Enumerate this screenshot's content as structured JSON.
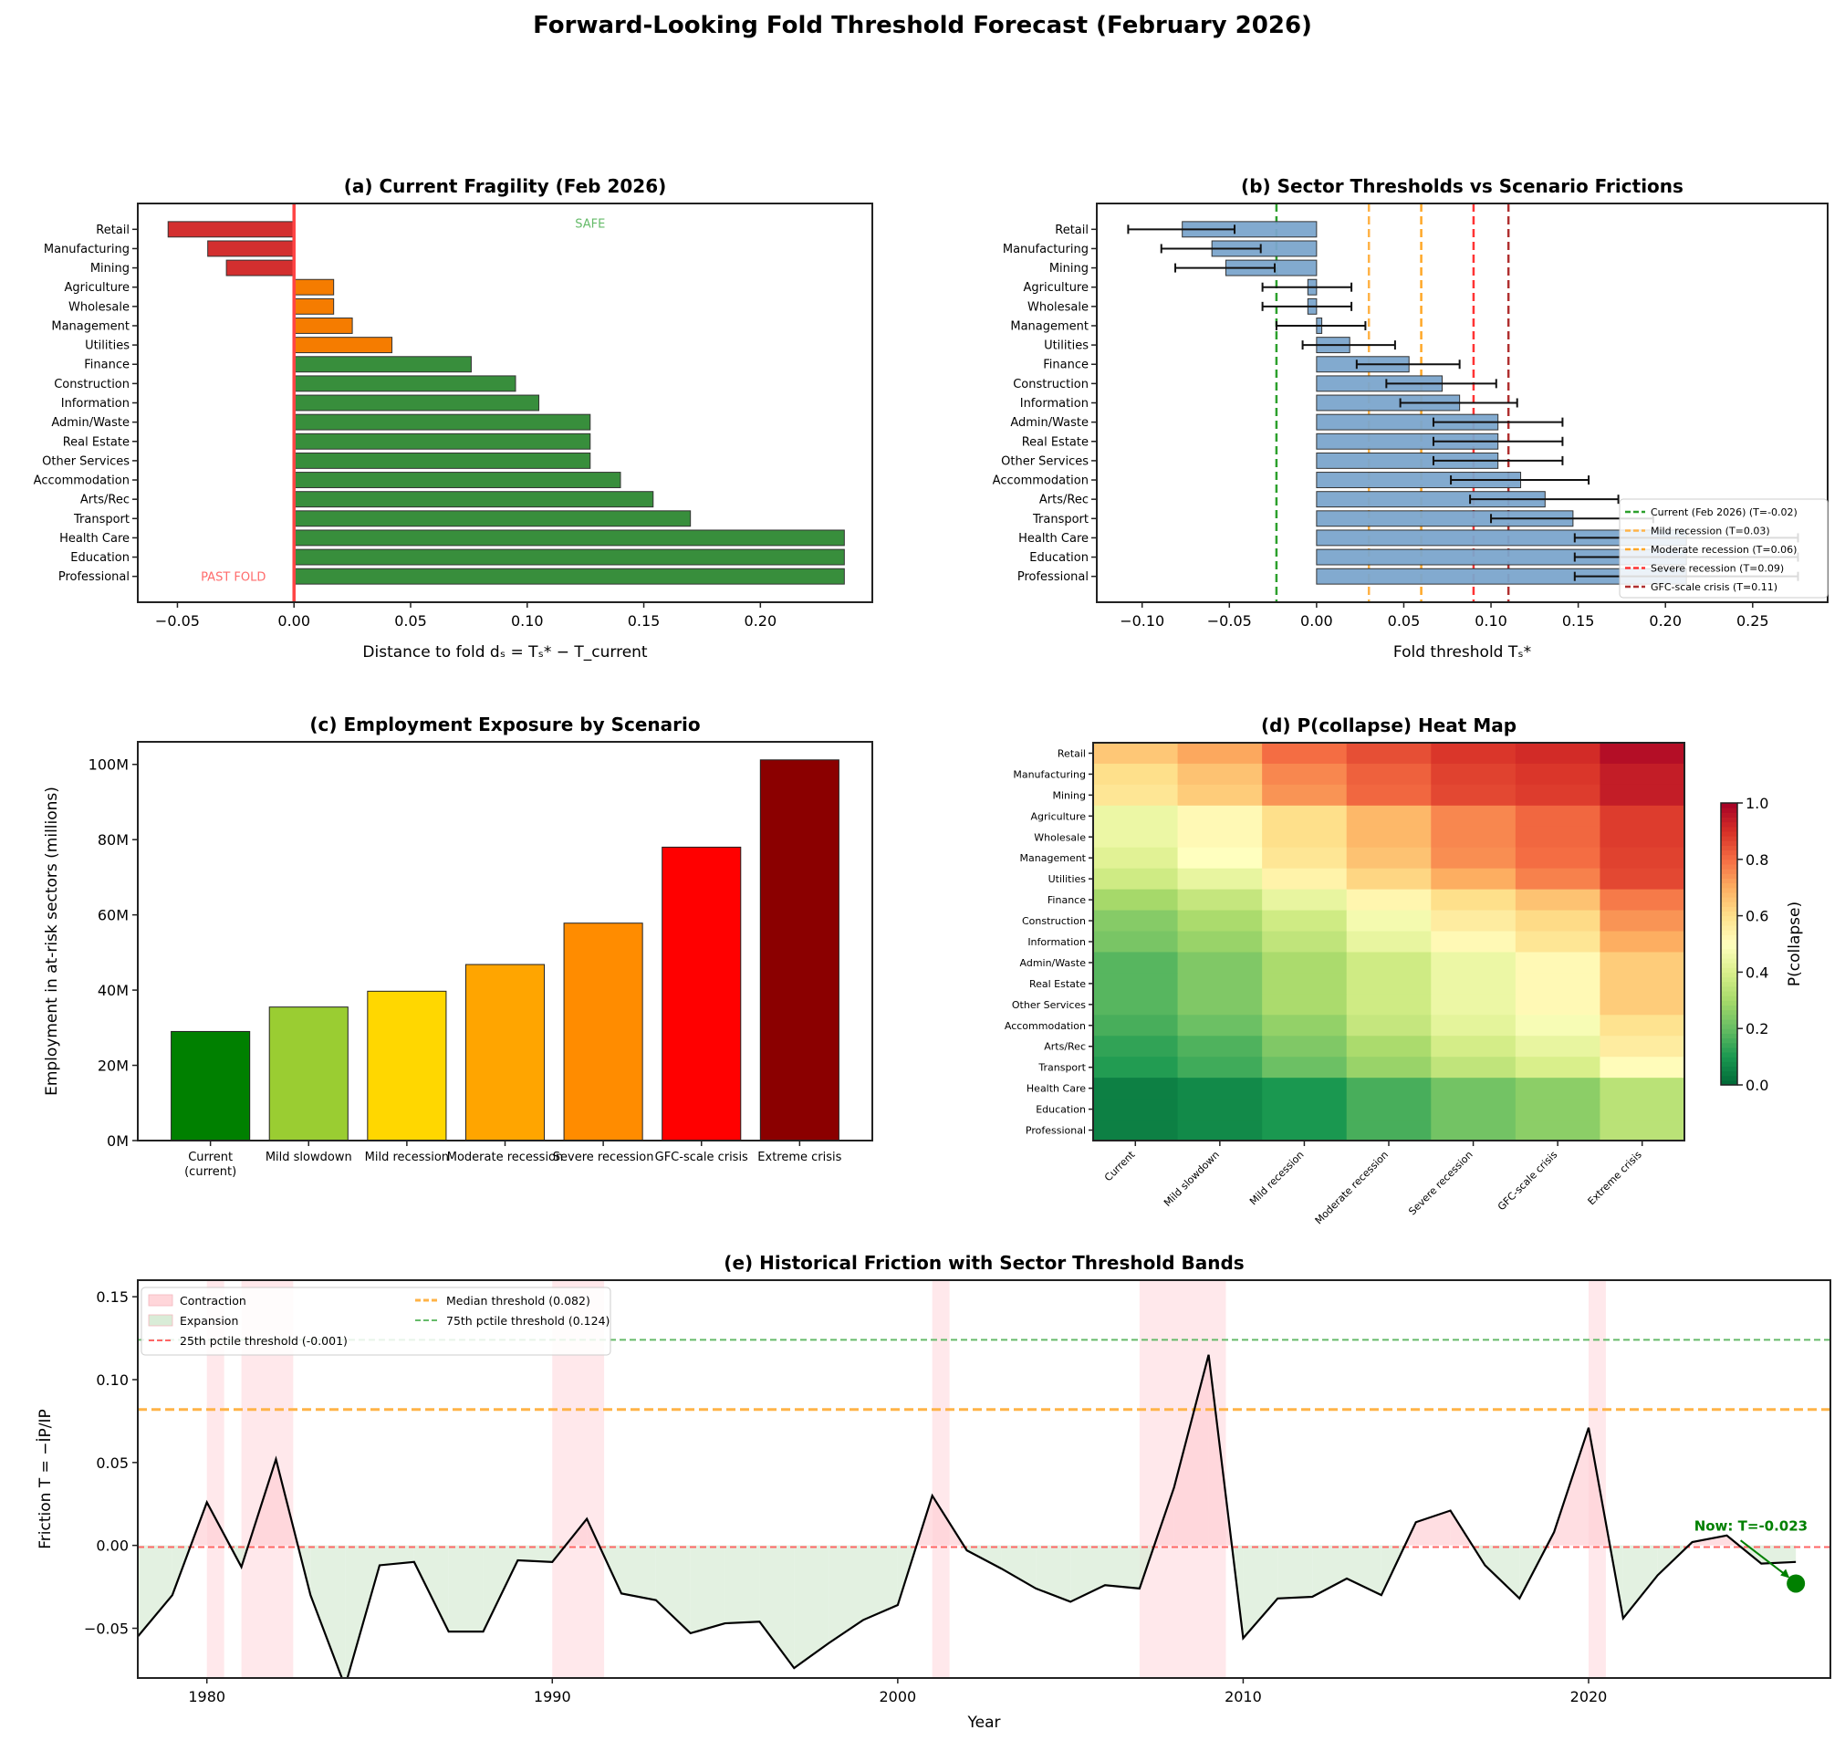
{
  "title": "Forward-Looking Fold Threshold Forecast (February 2026)",
  "colors": {
    "past_fold": "#d32f2f",
    "near_fold": "#f57c00",
    "safe": "#388e3c",
    "threshold_bar": "#7ba5cc",
    "current_line": "#ff4444"
  },
  "chart_data": [
    {
      "id": "a",
      "type": "bar",
      "orientation": "horizontal",
      "title": "(a) Current Fragility (Feb 2026)",
      "xlabel": "Distance to fold dₛ = Tₛ* − T_current",
      "xlim": [
        -0.067,
        0.248
      ],
      "xticks": [
        -0.05,
        0.0,
        0.05,
        0.1,
        0.15,
        0.2
      ],
      "categories": [
        "Retail",
        "Manufacturing",
        "Mining",
        "Agriculture",
        "Wholesale",
        "Management",
        "Utilities",
        "Finance",
        "Construction",
        "Information",
        "Admin/Waste",
        "Real Estate",
        "Other Services",
        "Accommodation",
        "Arts/Rec",
        "Transport",
        "Health Care",
        "Education",
        "Professional"
      ],
      "values": [
        -0.054,
        -0.037,
        -0.029,
        0.017,
        0.017,
        0.025,
        0.042,
        0.076,
        0.095,
        0.105,
        0.127,
        0.127,
        0.127,
        0.14,
        0.154,
        0.17,
        0.236,
        0.236,
        0.236
      ],
      "bar_colors": [
        "#d32f2f",
        "#d32f2f",
        "#d32f2f",
        "#f57c00",
        "#f57c00",
        "#f57c00",
        "#f57c00",
        "#388e3c",
        "#388e3c",
        "#388e3c",
        "#388e3c",
        "#388e3c",
        "#388e3c",
        "#388e3c",
        "#388e3c",
        "#388e3c",
        "#388e3c",
        "#388e3c",
        "#388e3c"
      ],
      "reference_line": 0.0,
      "annotations": [
        {
          "text": "SAFE",
          "x": 0.127,
          "y_category": "Retail",
          "color": "#66bb6a"
        },
        {
          "text": "PAST FOLD",
          "x": -0.026,
          "y_category": "Professional",
          "color": "#ff6b6b"
        }
      ]
    },
    {
      "id": "b",
      "type": "bar",
      "orientation": "horizontal",
      "title": "(b) Sector Thresholds vs Scenario Frictions",
      "xlabel": "Fold threshold Tₛ*",
      "xlim": [
        -0.126,
        0.293
      ],
      "xticks": [
        -0.1,
        -0.05,
        0.0,
        0.05,
        0.1,
        0.15,
        0.2,
        0.25
      ],
      "categories": [
        "Retail",
        "Manufacturing",
        "Mining",
        "Agriculture",
        "Wholesale",
        "Management",
        "Utilities",
        "Finance",
        "Construction",
        "Information",
        "Admin/Waste",
        "Real Estate",
        "Other Services",
        "Accommodation",
        "Arts/Rec",
        "Transport",
        "Health Care",
        "Education",
        "Professional"
      ],
      "values": [
        -0.077,
        -0.06,
        -0.052,
        -0.005,
        -0.005,
        0.003,
        0.019,
        0.053,
        0.072,
        0.082,
        0.104,
        0.104,
        0.104,
        0.117,
        0.131,
        0.147,
        0.212,
        0.212,
        0.212
      ],
      "error_low": [
        -0.108,
        -0.089,
        -0.081,
        -0.031,
        -0.031,
        -0.023,
        -0.008,
        0.023,
        0.04,
        0.048,
        0.067,
        0.067,
        0.067,
        0.077,
        0.088,
        0.1,
        0.148,
        0.148,
        0.148
      ],
      "error_high": [
        -0.047,
        -0.032,
        -0.024,
        0.02,
        0.02,
        0.028,
        0.045,
        0.082,
        0.103,
        0.115,
        0.141,
        0.141,
        0.141,
        0.156,
        0.173,
        0.193,
        0.276,
        0.276,
        0.276
      ],
      "scenario_lines": [
        {
          "label": "Current (Feb 2026) (T=-0.02)",
          "x": -0.023,
          "color": "#2ca02c"
        },
        {
          "label": "Mild recession (T=0.03)",
          "x": 0.03,
          "color": "#ffb347"
        },
        {
          "label": "Moderate recession (T=0.06)",
          "x": 0.06,
          "color": "#ffa726"
        },
        {
          "label": "Severe recession (T=0.09)",
          "x": 0.09,
          "color": "#ff3333"
        },
        {
          "label": "GFC-scale crisis (T=0.11)",
          "x": 0.11,
          "color": "#b03030"
        }
      ],
      "legend": "lower-right"
    },
    {
      "id": "c",
      "type": "bar",
      "title": "(c) Employment Exposure by Scenario",
      "ylabel": "Employment in at-risk sectors (millions)",
      "ylim": [
        0,
        106
      ],
      "yticks": [
        0,
        20,
        40,
        60,
        80,
        100
      ],
      "ytick_suffix": "M",
      "categories": [
        "Current\n(current)",
        "Mild slowdown",
        "Mild recession",
        "Moderate recession",
        "Severe recession",
        "GFC-scale crisis",
        "Extreme crisis"
      ],
      "values": [
        29.0,
        35.5,
        39.7,
        46.8,
        57.8,
        78.0,
        101.2
      ],
      "bar_colors": [
        "#008000",
        "#9acd32",
        "#ffd700",
        "#ffa500",
        "#ff8c00",
        "#ff0000",
        "#8b0000"
      ]
    },
    {
      "id": "d",
      "type": "heatmap",
      "title": "(d) P(collapse) Heat Map",
      "colormap": "RdYlGn_r",
      "colorbar_label": "P(collapse)",
      "clim": [
        0,
        1
      ],
      "colorbar_ticks": [
        0.0,
        0.2,
        0.4,
        0.6,
        0.8,
        1.0
      ],
      "rows": [
        "Retail",
        "Manufacturing",
        "Mining",
        "Agriculture",
        "Wholesale",
        "Management",
        "Utilities",
        "Finance",
        "Construction",
        "Information",
        "Admin/Waste",
        "Real Estate",
        "Other Services",
        "Accommodation",
        "Arts/Rec",
        "Transport",
        "Health Care",
        "Education",
        "Professional"
      ],
      "columns": [
        "Current",
        "Mild slowdown",
        "Mild recession",
        "Moderate recession",
        "Severe recession",
        "GFC-scale crisis",
        "Extreme crisis"
      ],
      "values": [
        [
          0.65,
          0.71,
          0.8,
          0.85,
          0.89,
          0.91,
          0.97
        ],
        [
          0.6,
          0.66,
          0.76,
          0.82,
          0.87,
          0.89,
          0.94
        ],
        [
          0.58,
          0.64,
          0.74,
          0.81,
          0.86,
          0.88,
          0.94
        ],
        [
          0.45,
          0.52,
          0.6,
          0.68,
          0.76,
          0.81,
          0.88
        ],
        [
          0.45,
          0.52,
          0.6,
          0.68,
          0.76,
          0.81,
          0.88
        ],
        [
          0.42,
          0.5,
          0.58,
          0.66,
          0.75,
          0.8,
          0.87
        ],
        [
          0.38,
          0.44,
          0.54,
          0.62,
          0.7,
          0.77,
          0.86
        ],
        [
          0.3,
          0.36,
          0.44,
          0.53,
          0.6,
          0.66,
          0.78
        ],
        [
          0.25,
          0.31,
          0.38,
          0.47,
          0.56,
          0.61,
          0.74
        ],
        [
          0.23,
          0.28,
          0.35,
          0.44,
          0.52,
          0.58,
          0.7
        ],
        [
          0.18,
          0.24,
          0.31,
          0.38,
          0.45,
          0.52,
          0.64
        ],
        [
          0.18,
          0.24,
          0.31,
          0.38,
          0.45,
          0.52,
          0.64
        ],
        [
          0.18,
          0.24,
          0.31,
          0.38,
          0.45,
          0.52,
          0.64
        ],
        [
          0.16,
          0.21,
          0.27,
          0.36,
          0.43,
          0.48,
          0.59
        ],
        [
          0.13,
          0.17,
          0.24,
          0.31,
          0.39,
          0.44,
          0.56
        ],
        [
          0.11,
          0.15,
          0.21,
          0.28,
          0.35,
          0.4,
          0.51
        ],
        [
          0.05,
          0.07,
          0.1,
          0.16,
          0.22,
          0.26,
          0.34
        ],
        [
          0.05,
          0.07,
          0.1,
          0.16,
          0.22,
          0.26,
          0.34
        ],
        [
          0.05,
          0.07,
          0.1,
          0.16,
          0.22,
          0.26,
          0.34
        ]
      ]
    },
    {
      "id": "e",
      "type": "line",
      "title": "(e) Historical Friction with Sector Threshold Bands",
      "xlabel": "Year",
      "ylabel": "Friction T = −İP/IP",
      "xlim": [
        1978,
        2027
      ],
      "ylim": [
        -0.08,
        0.16
      ],
      "xticks": [
        1980,
        1990,
        2000,
        2010,
        2020
      ],
      "yticks": [
        -0.05,
        0.0,
        0.05,
        0.1,
        0.15
      ],
      "x": [
        1978,
        1979,
        1980,
        1981,
        1982,
        1983,
        1984,
        1985,
        1986,
        1987,
        1988,
        1989,
        1990,
        1991,
        1992,
        1993,
        1994,
        1995,
        1996,
        1997,
        1998,
        1999,
        2000,
        2001,
        2002,
        2003,
        2004,
        2005,
        2006,
        2007,
        2008,
        2009,
        2010,
        2011,
        2012,
        2013,
        2014,
        2015,
        2016,
        2017,
        2018,
        2019,
        2020,
        2021,
        2022,
        2023,
        2024,
        2025,
        2026
      ],
      "y": [
        -0.055,
        -0.03,
        0.026,
        -0.013,
        0.052,
        -0.03,
        -0.085,
        -0.012,
        -0.01,
        -0.052,
        -0.052,
        -0.009,
        -0.01,
        0.016,
        -0.029,
        -0.033,
        -0.053,
        -0.047,
        -0.046,
        -0.074,
        -0.059,
        -0.045,
        -0.036,
        0.03,
        -0.003,
        -0.014,
        -0.026,
        -0.034,
        -0.024,
        -0.026,
        0.035,
        0.115,
        -0.056,
        -0.032,
        -0.031,
        -0.02,
        -0.03,
        0.014,
        0.021,
        -0.012,
        -0.032,
        0.008,
        0.071,
        -0.044,
        -0.018,
        0.002,
        0.006,
        -0.011,
        -0.01
      ],
      "contraction_periods": [
        [
          1980.0,
          1980.5
        ],
        [
          1981.0,
          1982.5
        ],
        [
          1990.0,
          1991.5
        ],
        [
          2001.0,
          2001.5
        ],
        [
          2007.0,
          2009.5
        ],
        [
          2020.0,
          2020.5
        ]
      ],
      "threshold_lines": [
        {
          "label": "25th pctile threshold (-0.001)",
          "y": -0.001,
          "color": "#ff6666"
        },
        {
          "label": "Median threshold (0.082)",
          "y": 0.082,
          "color": "#ffb347"
        },
        {
          "label": "75th pctile threshold (0.124)",
          "y": 0.124,
          "color": "#66bb6a"
        }
      ],
      "legend_patches": [
        {
          "label": "Contraction",
          "color": "#ffd6da"
        },
        {
          "label": "Expansion",
          "color": "#d9ecd7"
        }
      ],
      "legend": "upper-left",
      "now_point": {
        "x": 2026,
        "y": -0.023,
        "label": "Now: T=-0.023",
        "color": "#008000"
      }
    }
  ]
}
